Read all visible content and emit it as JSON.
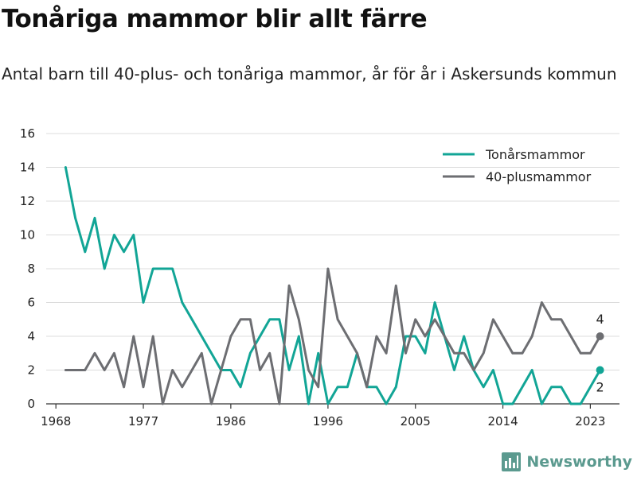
{
  "title": "Tonåriga mammor blir allt färre",
  "subtitle": "Antal barn till 40-plus- och tonåriga mammor, år för år i Askersunds kommun",
  "brand": {
    "name": "Newsworthy",
    "icon": "bar-chart-logo-icon",
    "color": "#5b9a8f"
  },
  "chart_data": {
    "type": "line",
    "title": "Tonåriga mammor blir allt färre",
    "subtitle": "Antal barn till 40-plus- och tonåriga mammor, år för år i Askersunds kommun",
    "xlabel": "",
    "ylabel": "",
    "x": [
      1969,
      1970,
      1971,
      1972,
      1973,
      1974,
      1975,
      1976,
      1977,
      1978,
      1979,
      1980,
      1981,
      1982,
      1983,
      1984,
      1985,
      1986,
      1987,
      1988,
      1989,
      1990,
      1991,
      1992,
      1993,
      1994,
      1995,
      1996,
      1997,
      1998,
      1999,
      2000,
      2001,
      2002,
      2003,
      2004,
      2005,
      2006,
      2007,
      2008,
      2009,
      2010,
      2011,
      2012,
      2013,
      2014,
      2015,
      2016,
      2017,
      2018,
      2019,
      2020,
      2021,
      2022,
      2023,
      2024
    ],
    "xlim": [
      1967,
      2026
    ],
    "ylim": [
      0,
      16
    ],
    "xticks": [
      1968,
      1977,
      1986,
      1996,
      2005,
      2014,
      2023
    ],
    "yticks": [
      0,
      2,
      4,
      6,
      8,
      10,
      12,
      14,
      16
    ],
    "grid": true,
    "legend": "top-right",
    "series": [
      {
        "name": "Tonårsmammor",
        "color": "#12a596",
        "values": [
          14,
          11,
          9,
          11,
          8,
          10,
          9,
          10,
          6,
          8,
          8,
          8,
          6,
          5,
          4,
          3,
          2,
          2,
          1,
          3,
          4,
          5,
          5,
          2,
          4,
          0,
          3,
          0,
          1,
          1,
          3,
          1,
          1,
          0,
          1,
          4,
          4,
          3,
          6,
          4,
          2,
          4,
          2,
          1,
          2,
          0,
          0,
          1,
          2,
          0,
          1,
          1,
          0,
          0,
          1,
          2
        ],
        "end_label": "2"
      },
      {
        "name": "40-plusmammor",
        "color": "#6d6e72",
        "values": [
          2,
          2,
          2,
          3,
          2,
          3,
          1,
          4,
          1,
          4,
          0,
          2,
          1,
          2,
          3,
          0,
          2,
          4,
          5,
          5,
          2,
          3,
          0,
          7,
          5,
          2,
          1,
          8,
          5,
          4,
          3,
          1,
          4,
          3,
          7,
          3,
          5,
          4,
          5,
          4,
          3,
          3,
          2,
          3,
          5,
          4,
          3,
          3,
          4,
          6,
          5,
          5,
          4,
          3,
          3,
          4
        ],
        "end_label": "4"
      }
    ]
  }
}
